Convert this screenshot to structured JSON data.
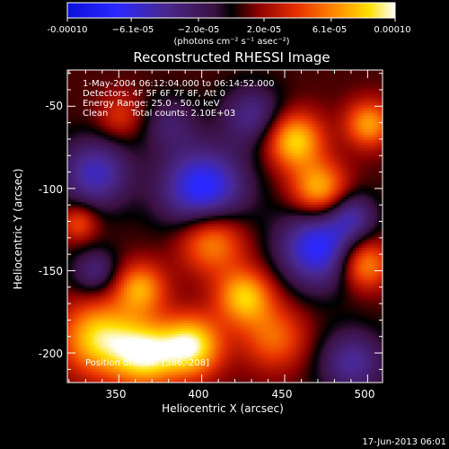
{
  "chart_data": {
    "type": "heatmap",
    "title": "Reconstructed RHESSI Image",
    "xlabel": "Heliocentric X (arcsec)",
    "ylabel": "Heliocentric Y (arcsec)",
    "xlim": [
      319,
      509
    ],
    "ylim": [
      -218,
      -28
    ],
    "xticks": [
      350,
      400,
      450,
      500
    ],
    "yticks": [
      -50,
      -100,
      -150,
      -200
    ],
    "colorbar": {
      "range": [
        -0.0001,
        0.0001
      ],
      "tick_values": [
        -0.0001,
        -6.1e-05,
        -2e-05,
        2e-05,
        6.1e-05,
        0.0001
      ],
      "tick_labels": [
        "-0.00010",
        "−6.1e-05",
        "−2.0e-05",
        "2.0e-05",
        "6.1e-05",
        "0.00010"
      ],
      "unit_label": "(photons cm⁻² s⁻¹ asec⁻²)"
    },
    "annotations": {
      "time_range": "1-May-2004 06:12:04.000 to 06:14:52.000",
      "detectors": "Detectors: 4F 5F 6F 7F 8F, Att 0",
      "energy": "Energy Range: 25.0 - 50.0 keV",
      "clean": "Clean",
      "counts": "Total counts: 2.10E+03",
      "position": "Position of Peak: [386,-208]"
    },
    "sources": [
      {
        "x": 337,
        "y": -190,
        "sigma": 16,
        "amp": 7.5e-05
      },
      {
        "x": 365,
        "y": -200,
        "sigma": 14,
        "amp": 8e-05
      },
      {
        "x": 393,
        "y": -195,
        "sigma": 13,
        "amp": 8.5e-05
      },
      {
        "x": 362,
        "y": -160,
        "sigma": 11,
        "amp": 6e-05
      },
      {
        "x": 405,
        "y": -130,
        "sigma": 14,
        "amp": 6.5e-05
      },
      {
        "x": 425,
        "y": -165,
        "sigma": 12,
        "amp": 7e-05
      },
      {
        "x": 455,
        "y": -70,
        "sigma": 12,
        "amp": 7.5e-05
      },
      {
        "x": 470,
        "y": -100,
        "sigma": 12,
        "amp": 7e-05
      },
      {
        "x": 500,
        "y": -60,
        "sigma": 10,
        "amp": 6e-05
      },
      {
        "x": 497,
        "y": -145,
        "sigma": 11,
        "amp": 6.5e-05
      },
      {
        "x": 443,
        "y": -190,
        "sigma": 14,
        "amp": 4.5e-05
      },
      {
        "x": 325,
        "y": -120,
        "sigma": 8,
        "amp": 4e-05
      },
      {
        "x": 350,
        "y": -55,
        "sigma": 10,
        "amp": 3e-05
      },
      {
        "x": 400,
        "y": -100,
        "sigma": 18,
        "amp": -8.5e-05
      },
      {
        "x": 470,
        "y": -135,
        "sigma": 17,
        "amp": -8e-05
      },
      {
        "x": 335,
        "y": -90,
        "sigma": 15,
        "amp": -6e-05
      },
      {
        "x": 490,
        "y": -205,
        "sigma": 14,
        "amp": -5e-05
      },
      {
        "x": 490,
        "y": -115,
        "sigma": 10,
        "amp": -4e-05
      },
      {
        "x": 430,
        "y": -55,
        "sigma": 13,
        "amp": -4.5e-05
      },
      {
        "x": 335,
        "y": -150,
        "sigma": 10,
        "amp": -4e-05
      },
      {
        "x": 380,
        "y": -60,
        "sigma": 12,
        "amp": -3e-05
      }
    ]
  },
  "footer": {
    "date": "17-Jun-2013 06:01"
  },
  "colors": {
    "background": "#000000",
    "axis": "#ffffff"
  }
}
